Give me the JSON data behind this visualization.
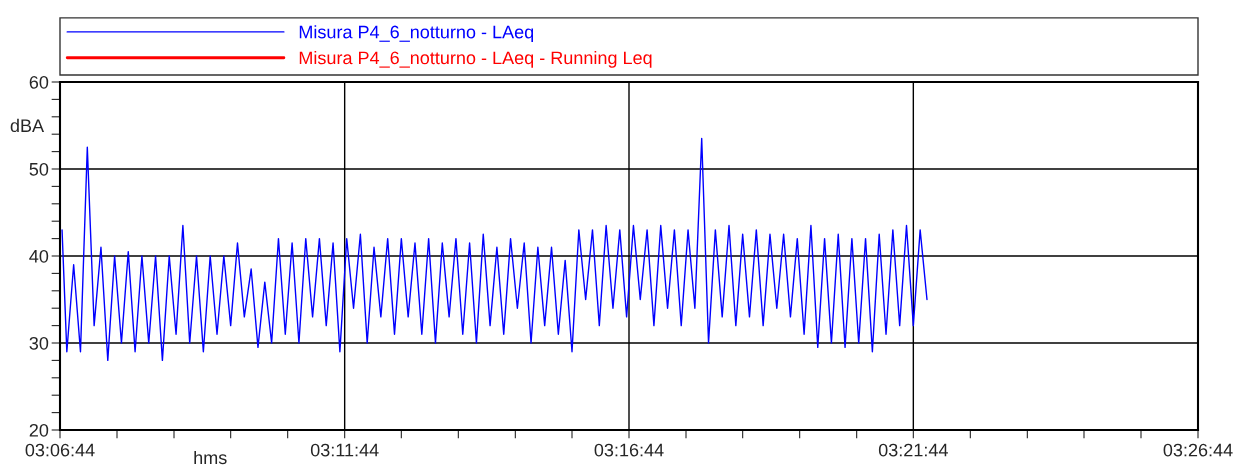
{
  "chart_data": {
    "type": "line",
    "xlabel": "hms",
    "ylabel": "dBA",
    "legend": "top",
    "grid": true,
    "marker": "none",
    "line_style": "solid",
    "xlim": [
      3.1122,
      3.4456
    ],
    "ylim": [
      20,
      60
    ],
    "xticks": [
      {
        "value": 3.1122,
        "label": "03:06:44"
      },
      {
        "value": 3.1289,
        "label": null
      },
      {
        "value": 3.1456,
        "label": null
      },
      {
        "value": 3.1622,
        "label": null
      },
      {
        "value": 3.1789,
        "label": null
      },
      {
        "value": 3.1956,
        "label": "03:11:44"
      },
      {
        "value": 3.2122,
        "label": null
      },
      {
        "value": 3.2289,
        "label": null
      },
      {
        "value": 3.2456,
        "label": null
      },
      {
        "value": 3.2622,
        "label": null
      },
      {
        "value": 3.2789,
        "label": "03:16:44"
      },
      {
        "value": 3.2956,
        "label": null
      },
      {
        "value": 3.3122,
        "label": null
      },
      {
        "value": 3.3289,
        "label": null
      },
      {
        "value": 3.3456,
        "label": null
      },
      {
        "value": 3.3622,
        "label": "03:21:44"
      },
      {
        "value": 3.3789,
        "label": null
      },
      {
        "value": 3.3956,
        "label": null
      },
      {
        "value": 3.4122,
        "label": null
      },
      {
        "value": 3.4289,
        "label": null
      },
      {
        "value": 3.4456,
        "label": "03:26:44"
      }
    ],
    "yticks": [
      20,
      {
        "value": 22,
        "label": null
      },
      {
        "value": 24,
        "label": null
      },
      {
        "value": 26,
        "label": null
      },
      {
        "value": 28,
        "label": null
      },
      30,
      {
        "value": 32,
        "label": null
      },
      {
        "value": 34,
        "label": null
      },
      {
        "value": 36,
        "label": null
      },
      {
        "value": 38,
        "label": null
      },
      40,
      {
        "value": 42,
        "label": null
      },
      {
        "value": 44,
        "label": null
      },
      {
        "value": 46,
        "label": null
      },
      {
        "value": 48,
        "label": null
      },
      50,
      {
        "value": 52,
        "label": null
      },
      {
        "value": 54,
        "label": null
      },
      {
        "value": 56,
        "label": null
      },
      {
        "value": 58,
        "label": null
      },
      60
    ],
    "series": [
      {
        "name": "Misura P4_6_notturno - LAeq",
        "color": "#0000ff",
        "x": [
          3.1128,
          3.1142,
          3.1162,
          3.1182,
          3.1202,
          3.1222,
          3.1242,
          3.1262,
          3.1282,
          3.1302,
          3.1322,
          3.1342,
          3.1362,
          3.1382,
          3.1402,
          3.1422,
          3.1442,
          3.1462,
          3.1482,
          3.1502,
          3.1522,
          3.1542,
          3.1562,
          3.1582,
          3.1602,
          3.1622,
          3.1642,
          3.1662,
          3.1682,
          3.1702,
          3.1722,
          3.1742,
          3.1762,
          3.1782,
          3.1802,
          3.1822,
          3.1842,
          3.1862,
          3.1882,
          3.1902,
          3.1922,
          3.1942,
          3.1962,
          3.1982,
          3.2002,
          3.2022,
          3.2042,
          3.2062,
          3.2082,
          3.2102,
          3.2122,
          3.2142,
          3.2162,
          3.2182,
          3.2202,
          3.2222,
          3.2242,
          3.2262,
          3.2282,
          3.2302,
          3.2322,
          3.2342,
          3.2362,
          3.2382,
          3.2402,
          3.2422,
          3.2442,
          3.2462,
          3.2482,
          3.2502,
          3.2522,
          3.2542,
          3.2562,
          3.2582,
          3.2602,
          3.2622,
          3.2642,
          3.2662,
          3.2682,
          3.2702,
          3.2722,
          3.2742,
          3.2762,
          3.2782,
          3.2802,
          3.2822,
          3.2842,
          3.2862,
          3.2882,
          3.2902,
          3.2922,
          3.2942,
          3.2962,
          3.2982,
          3.3002,
          3.3022,
          3.3042,
          3.3062,
          3.3082,
          3.3102,
          3.3122,
          3.3142,
          3.3162,
          3.3182,
          3.3202,
          3.3222,
          3.3242,
          3.3262,
          3.3282,
          3.3302,
          3.3322,
          3.3342,
          3.3362,
          3.3382,
          3.3402,
          3.3422,
          3.3442,
          3.3462,
          3.3482,
          3.3502,
          3.3522,
          3.3542,
          3.3562,
          3.3582,
          3.3602,
          3.3622,
          3.3642,
          3.3662
        ],
        "values": [
          43,
          29,
          39,
          29,
          52.5,
          32,
          41,
          28,
          40,
          30,
          40.5,
          29,
          40,
          30,
          40,
          28,
          40,
          31,
          43.5,
          30,
          40,
          29,
          40,
          31,
          40,
          32,
          41.5,
          33,
          38.5,
          29.5,
          37,
          30,
          42,
          31,
          41.5,
          30,
          42,
          33,
          42,
          32,
          41.5,
          29,
          42,
          34,
          42.5,
          30,
          41,
          33,
          42,
          31,
          42,
          33,
          41.5,
          31,
          42,
          30,
          41.5,
          33,
          42,
          31,
          41.5,
          30,
          42.5,
          32,
          41,
          31,
          42,
          34,
          41.5,
          30,
          41,
          32,
          41,
          31,
          39.5,
          29,
          43,
          35,
          43,
          32,
          43.5,
          34,
          43,
          33,
          43.5,
          35,
          43,
          32,
          43.5,
          34,
          43,
          32,
          43,
          34,
          53.5,
          30,
          43,
          33,
          43.5,
          32,
          42.5,
          33,
          43,
          32,
          42.5,
          34,
          42.5,
          33,
          42,
          31,
          43.5,
          29.5,
          42,
          30,
          42.5,
          29.5,
          42,
          30,
          42,
          29,
          42.5,
          31,
          43,
          32,
          43.5,
          32,
          43,
          35
        ]
      },
      {
        "name": "Misura P4_6_notturno - LAeq - Running Leq",
        "color": "#ff0000"
      }
    ]
  }
}
